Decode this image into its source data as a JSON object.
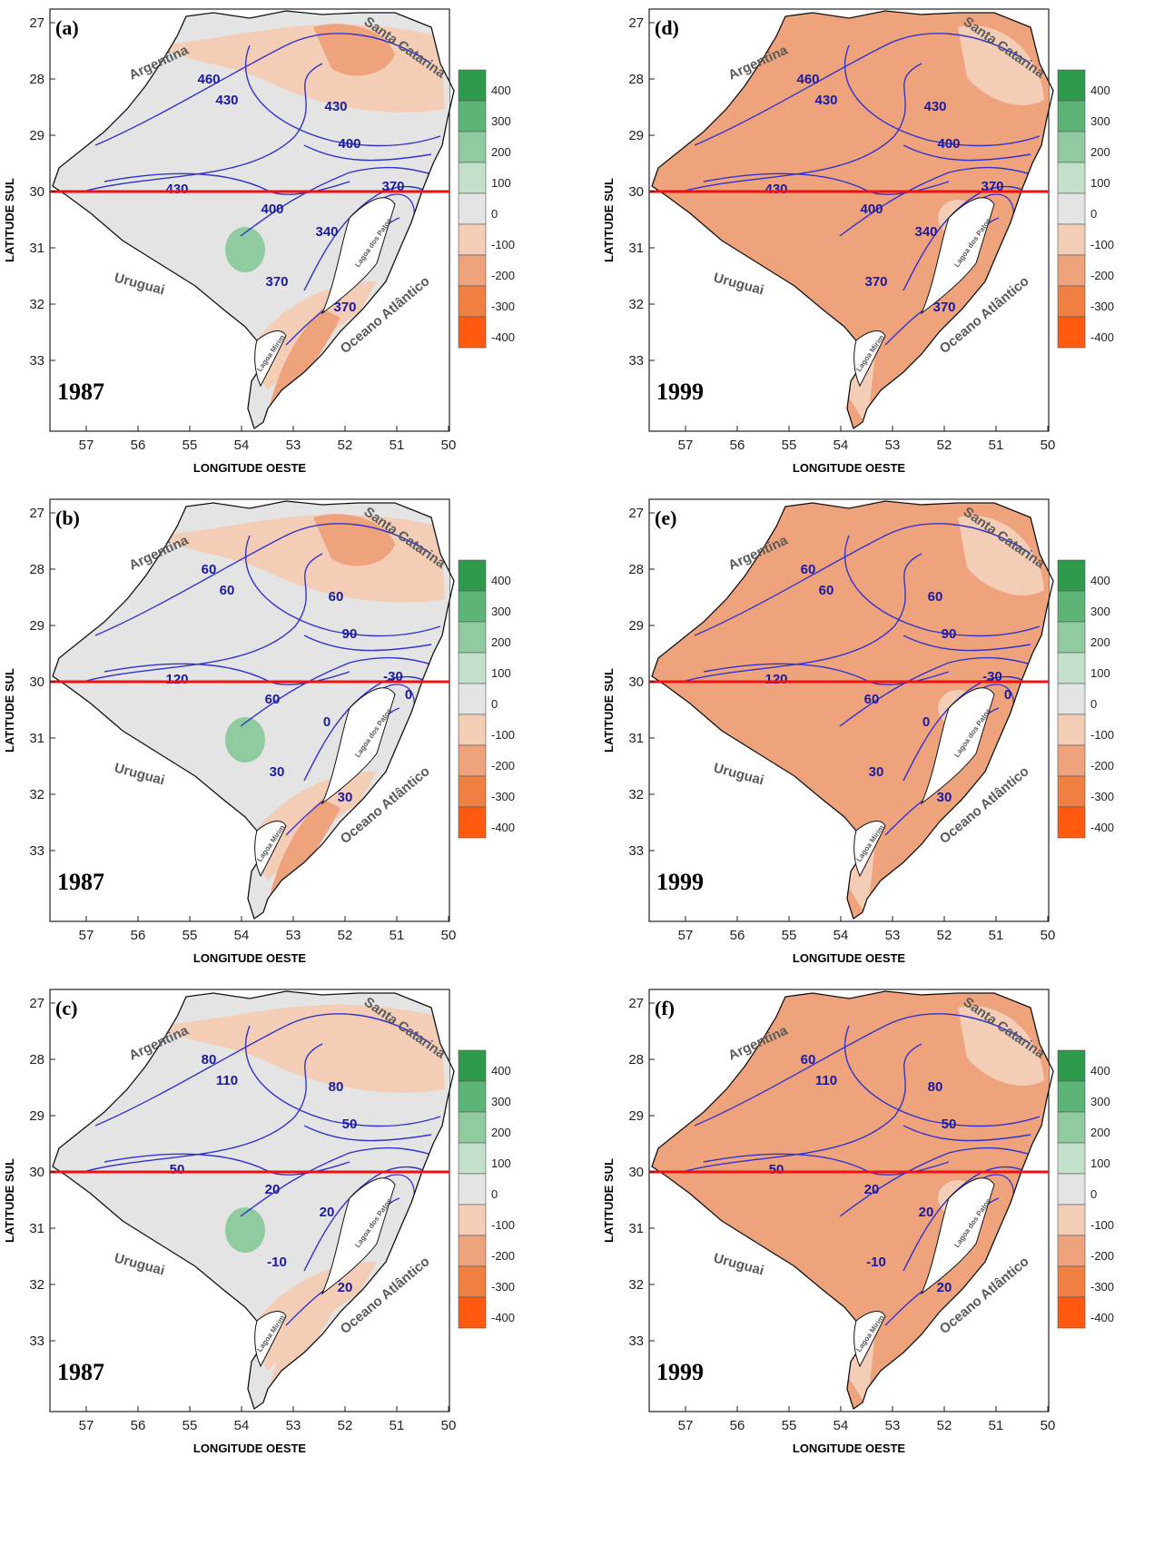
{
  "axis": {
    "xlabel": "LONGITUDE OESTE",
    "ylabel": "LATITUDE SUL",
    "xticks": [
      "57",
      "56",
      "55",
      "54",
      "53",
      "52",
      "51",
      "50"
    ],
    "yticks": [
      "27",
      "28",
      "29",
      "30",
      "31",
      "32",
      "33"
    ]
  },
  "labels": {
    "argentina": "Argentina",
    "santa_catarina": "Santa Catarina",
    "uruguai": "Uruguai",
    "oceano": "Oceano Atlântico",
    "lagoa_patos": "Lagoa dos Patos",
    "lagoa_mirim": "Lagoa Mirim"
  },
  "colorbar": {
    "ticks": [
      "400",
      "300",
      "200",
      "100",
      "0",
      "-100",
      "-200",
      "-300",
      "-400"
    ],
    "colors": [
      "#2e9a4c",
      "#5cb476",
      "#8fcb9e",
      "#c3e0cb",
      "#e4e4e4",
      "#f3cdb6",
      "#eea37d",
      "#f07f42",
      "#ff5a10"
    ]
  },
  "reference_line": {
    "latitude": "30",
    "color": "#ee1111"
  },
  "panels": [
    {
      "id": "a",
      "letter": "(a)",
      "year": "1987",
      "contours": [
        "460",
        "430",
        "430",
        "430",
        "400",
        "400",
        "370",
        "370",
        "340",
        "370"
      ]
    },
    {
      "id": "b",
      "letter": "(b)",
      "year": "1987",
      "contours": [
        "60",
        "60",
        "60",
        "120",
        "90",
        "60",
        "30",
        "30",
        "0",
        "-30",
        "0"
      ]
    },
    {
      "id": "c",
      "letter": "(c)",
      "year": "1987",
      "contours": [
        "80",
        "110",
        "80",
        "50",
        "50",
        "20",
        "-10",
        "20",
        "20"
      ]
    },
    {
      "id": "d",
      "letter": "(d)",
      "year": "1999",
      "contours": [
        "460",
        "430",
        "430",
        "430",
        "400",
        "400",
        "370",
        "370",
        "340",
        "370"
      ]
    },
    {
      "id": "e",
      "letter": "(e)",
      "year": "1999",
      "contours": [
        "60",
        "60",
        "60",
        "120",
        "90",
        "60",
        "30",
        "30",
        "0",
        "-30",
        "0"
      ]
    },
    {
      "id": "f",
      "letter": "(f)",
      "year": "1999",
      "contours": [
        "60",
        "110",
        "80",
        "50",
        "50",
        "20",
        "-10",
        "20",
        "20"
      ]
    }
  ]
}
